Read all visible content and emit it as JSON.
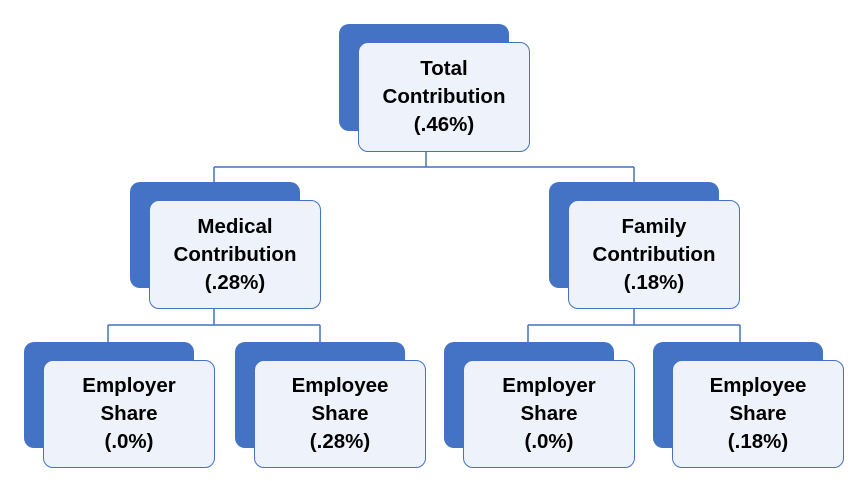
{
  "diagram": {
    "root": {
      "label": "Total\nContribution\n(.46%)"
    },
    "medical": {
      "label": "Medical\nContribution\n(.28%)"
    },
    "family": {
      "label": "Family\nContribution\n(.18%)"
    },
    "medical_employer": {
      "label": "Employer\nShare\n(.0%)"
    },
    "medical_employee": {
      "label": "Employee\nShare\n(.28%)"
    },
    "family_employer": {
      "label": "Employer\nShare\n(.0%)"
    },
    "family_employee": {
      "label": "Employee\nShare\n(.18%)"
    }
  },
  "colors": {
    "box_fill": "#eef2fa",
    "accent": "#4472c4",
    "connector": "#4472c4"
  }
}
